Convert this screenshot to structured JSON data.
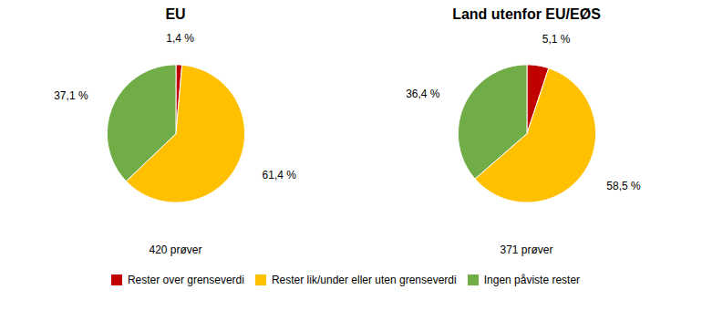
{
  "chart_data": [
    {
      "type": "pie",
      "title": "EU",
      "subtitle": "420 prøver",
      "categories": [
        "Rester over grenseverdi",
        "Rester lik/under eller uten grenseverdi",
        "Ingen påviste rester"
      ],
      "values": [
        1.4,
        61.4,
        37.1
      ],
      "value_labels": [
        "1,4 %",
        "61,4 %",
        "37,1 %"
      ],
      "colors": [
        "#c00000",
        "#ffc000",
        "#70ad47"
      ],
      "data_labels": true,
      "legend": "bottom"
    },
    {
      "type": "pie",
      "title": "Land utenfor EU/EØS",
      "subtitle": "371 prøver",
      "categories": [
        "Rester over grenseverdi",
        "Rester lik/under eller uten grenseverdi",
        "Ingen påviste rester"
      ],
      "values": [
        5.1,
        58.5,
        36.4
      ],
      "value_labels": [
        "5,1 %",
        "58,5 %",
        "36,4 %"
      ],
      "colors": [
        "#c00000",
        "#ffc000",
        "#70ad47"
      ],
      "data_labels": true,
      "legend": "bottom"
    }
  ]
}
